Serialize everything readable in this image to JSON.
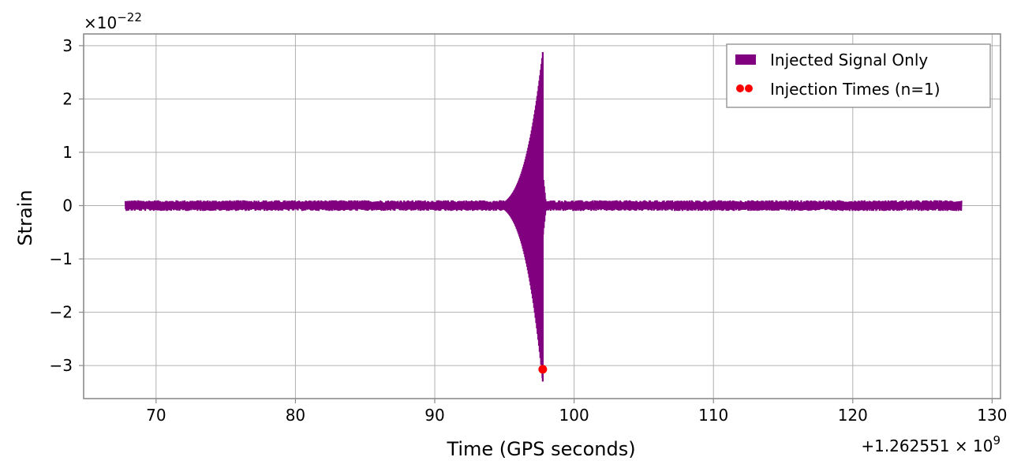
{
  "chart_data": {
    "type": "line",
    "title": "",
    "xlabel": "Time (GPS seconds)",
    "ylabel": "Strain",
    "x_offset_text": "+1.262551 × 10⁹",
    "x_offset_base": "+1.262551",
    "x_offset_exp": "9",
    "y_multiplier_exp": "−22",
    "xlim": [
      64.8,
      130.6
    ],
    "ylim": [
      -3.62,
      3.22
    ],
    "x_ticks": [
      70,
      80,
      90,
      100,
      110,
      120,
      130
    ],
    "x_tick_labels": [
      "70",
      "80",
      "90",
      "100",
      "110",
      "120",
      "130"
    ],
    "y_ticks": [
      -3,
      -2,
      -1,
      0,
      1,
      2,
      3
    ],
    "y_tick_labels": [
      "−3",
      "−2",
      "−1",
      "0",
      "1",
      "2",
      "3"
    ],
    "grid": true,
    "legend_position": "top-right",
    "series": [
      {
        "name": "Injected Signal Only",
        "kind": "line",
        "color": "#800080",
        "x_range": [
          67.8,
          127.8
        ],
        "baseline_noise_amplitude": 0.1,
        "burst": {
          "peak_time": 97.75,
          "max": 2.88,
          "min": -3.3
        }
      },
      {
        "name": "Injection Times (n=1)",
        "kind": "scatter",
        "color": "#ff0000",
        "points": [
          {
            "x": 97.75,
            "y": -3.07
          }
        ]
      }
    ]
  },
  "colors": {
    "axes_edge": "#8c8c8c",
    "grid": "#b0b0b0",
    "signal": "#800080",
    "injection": "#ff0000"
  }
}
